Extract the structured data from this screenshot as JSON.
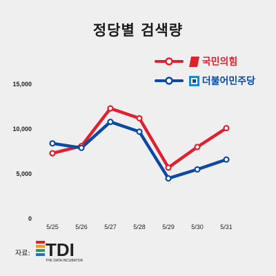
{
  "title": "정당별 검색량",
  "legend": {
    "ppp": {
      "label": "국민의힘",
      "color": "#e0202e"
    },
    "dp": {
      "label": "더불어민주당",
      "color": "#0a4aa3"
    }
  },
  "source_label": "자료:",
  "logo": {
    "brand": "TDI",
    "tagline": "THE DATA INCUBATOR"
  },
  "chart_data": {
    "type": "line",
    "title": "정당별 검색량",
    "x": [
      "5/25",
      "5/26",
      "5/27",
      "5/28",
      "5/29",
      "5/30",
      "5/31"
    ],
    "y_ticks": [
      "15,000",
      "10,000",
      "5,000",
      "0"
    ],
    "ylim": [
      0,
      15000
    ],
    "grid": false,
    "legend_position": "top-right",
    "series": [
      {
        "name": "국민의힘",
        "color": "#e0202e",
        "values": [
          7300,
          8100,
          12300,
          11200,
          5700,
          8000,
          10100
        ]
      },
      {
        "name": "더불어민주당",
        "color": "#0a4aa3",
        "values": [
          8400,
          7900,
          10800,
          9700,
          4500,
          5500,
          6600
        ]
      }
    ]
  }
}
